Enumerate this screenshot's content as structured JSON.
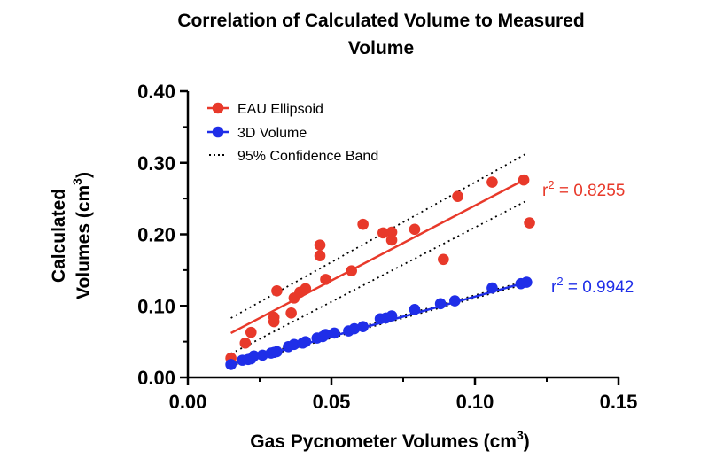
{
  "chart_data": {
    "type": "scatter",
    "title_lines": [
      "Correlation of Calculated Volume to Measured",
      "Volume"
    ],
    "xlabel": {
      "text": "Gas Pycnometer Volumes (cm",
      "sup": "3",
      "end": ")"
    },
    "ylabel": [
      {
        "text": "Calculated"
      },
      {
        "text": "Volumes (cm",
        "sup": "3",
        "end": ")"
      }
    ],
    "xlim": [
      0,
      0.15
    ],
    "ylim": [
      0,
      0.4
    ],
    "xticks": [
      0,
      0.05,
      0.1,
      0.15
    ],
    "yticks": [
      0,
      0.1,
      0.2,
      0.3,
      0.4
    ],
    "xtick_labels": [
      "0.00",
      "0.05",
      "0.10",
      "0.15"
    ],
    "ytick_labels": [
      "0.00",
      "0.10",
      "0.20",
      "0.30",
      "0.40"
    ],
    "grid": false,
    "legend_position": "top-left",
    "legend": [
      {
        "label": "EAU Ellipsoid",
        "type": "marker-line",
        "color": "#e8392a"
      },
      {
        "label": "3D Volume",
        "type": "marker-line",
        "color": "#1f2ee8"
      },
      {
        "label": "95% Confidence Band",
        "type": "dotted",
        "color": "#000000"
      }
    ],
    "series": [
      {
        "name": "EAU Ellipsoid",
        "color": "#e8392a",
        "x": [
          0.015,
          0.02,
          0.022,
          0.03,
          0.03,
          0.031,
          0.036,
          0.037,
          0.039,
          0.041,
          0.046,
          0.046,
          0.048,
          0.057,
          0.061,
          0.068,
          0.071,
          0.071,
          0.079,
          0.089,
          0.094,
          0.106,
          0.117,
          0.119
        ],
        "y": [
          0.027,
          0.048,
          0.063,
          0.084,
          0.078,
          0.121,
          0.09,
          0.111,
          0.119,
          0.124,
          0.17,
          0.185,
          0.137,
          0.149,
          0.214,
          0.202,
          0.203,
          0.192,
          0.207,
          0.165,
          0.253,
          0.273,
          0.276,
          0.216
        ],
        "fit": {
          "x": [
            0.015,
            0.118
          ],
          "y": [
            0.062,
            0.278
          ]
        },
        "band_upper": {
          "x": [
            0.015,
            0.118
          ],
          "y": [
            0.083,
            0.313
          ]
        },
        "band_lower": {
          "x": [
            0.015,
            0.118
          ],
          "y": [
            0.033,
            0.247
          ]
        },
        "r2_label": {
          "text": "r",
          "sup": "2",
          "value": " = 0.8255"
        }
      },
      {
        "name": "3D Volume",
        "color": "#1f2ee8",
        "x": [
          0.015,
          0.019,
          0.021,
          0.022,
          0.023,
          0.026,
          0.029,
          0.03,
          0.031,
          0.035,
          0.037,
          0.04,
          0.041,
          0.045,
          0.047,
          0.048,
          0.051,
          0.056,
          0.058,
          0.061,
          0.067,
          0.069,
          0.071,
          0.079,
          0.088,
          0.093,
          0.106,
          0.116,
          0.118
        ],
        "y": [
          0.018,
          0.024,
          0.025,
          0.026,
          0.03,
          0.031,
          0.034,
          0.035,
          0.036,
          0.043,
          0.046,
          0.048,
          0.05,
          0.055,
          0.057,
          0.06,
          0.062,
          0.065,
          0.068,
          0.071,
          0.082,
          0.083,
          0.086,
          0.095,
          0.103,
          0.107,
          0.125,
          0.131,
          0.133
        ],
        "fit": {
          "x": [
            0.015,
            0.118
          ],
          "y": [
            0.018,
            0.133
          ]
        },
        "band_upper": {
          "x": [
            0.015,
            0.118
          ],
          "y": [
            0.02,
            0.135
          ]
        },
        "band_lower": {
          "x": [
            0.015,
            0.118
          ],
          "y": [
            0.016,
            0.131
          ]
        },
        "r2_label": {
          "text": "r",
          "sup": "2",
          "value": " = 0.9942"
        }
      }
    ]
  }
}
